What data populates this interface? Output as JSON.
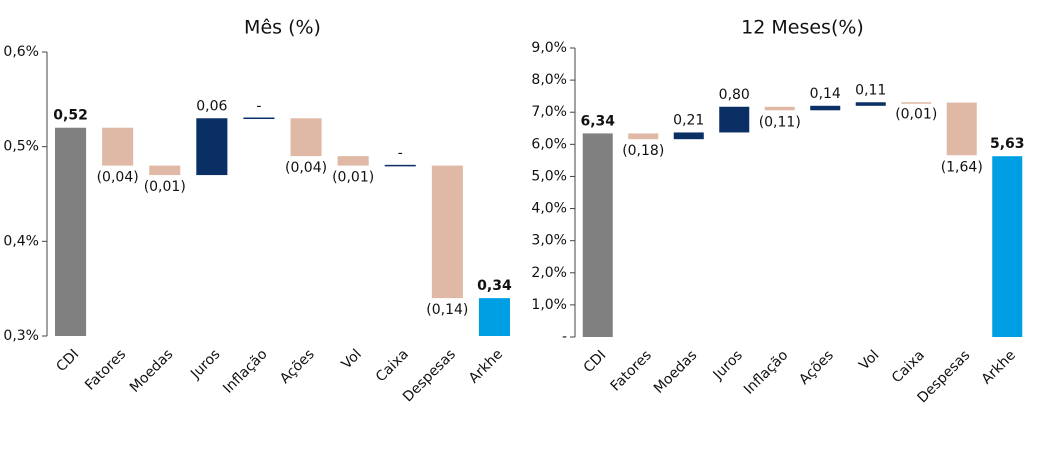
{
  "chart_data": [
    {
      "type": "waterfall",
      "title": "Mês (%)",
      "categories": [
        "CDI",
        "Fatores",
        "Moedas",
        "Juros",
        "Inflação",
        "Ações",
        "Vol",
        "Caixa",
        "Despesas",
        "Arkhe"
      ],
      "values": [
        0.52,
        -0.04,
        -0.01,
        0.06,
        0,
        -0.04,
        -0.01,
        0,
        -0.14,
        0.34
      ],
      "value_labels": [
        "0,52",
        "(0,04)",
        "(0,01)",
        "0,06",
        "-",
        "(0,04)",
        "(0,01)",
        "-",
        "(0,14)",
        "0,34"
      ],
      "colors": [
        "#808080",
        "#dfb9a5",
        "#dfb9a5",
        "#0a2f64",
        "#0a2f64",
        "#dfb9a5",
        "#dfb9a5",
        "#0a2f64",
        "#dfb9a5",
        "#009fe3"
      ],
      "ylim": [
        0.3,
        0.6
      ],
      "yticks": [
        {
          "value": 0.3,
          "label": "0,3%"
        },
        {
          "value": 0.4,
          "label": "0,4%"
        },
        {
          "value": 0.5,
          "label": "0,5%"
        },
        {
          "value": 0.6,
          "label": "0,6%"
        }
      ]
    },
    {
      "type": "waterfall",
      "title": "12 Meses(%)",
      "categories": [
        "CDI",
        "Fatores",
        "Moedas",
        "Juros",
        "Inflação",
        "Ações",
        "Vol",
        "Caixa",
        "Despesas",
        "Arkhe"
      ],
      "values": [
        6.34,
        -0.18,
        0.21,
        0.8,
        -0.11,
        0.14,
        0.11,
        -0.01,
        -1.64,
        5.63
      ],
      "value_labels": [
        "6,34",
        "(0,18)",
        "0,21",
        "0,80",
        "(0,11)",
        "0,14",
        "0,11",
        "(0,01)",
        "(1,64)",
        "5,63"
      ],
      "colors": [
        "#808080",
        "#dfb9a5",
        "#0a2f64",
        "#0a2f64",
        "#dfb9a5",
        "#0a2f64",
        "#0a2f64",
        "#dfb9a5",
        "#dfb9a5",
        "#009fe3"
      ],
      "ylim": [
        0,
        9
      ],
      "yticks": [
        {
          "value": 0,
          "label": "-"
        },
        {
          "value": 1,
          "label": "1,0%"
        },
        {
          "value": 2,
          "label": "2,0%"
        },
        {
          "value": 3,
          "label": "3,0%"
        },
        {
          "value": 4,
          "label": "4,0%"
        },
        {
          "value": 5,
          "label": "5,0%"
        },
        {
          "value": 6,
          "label": "6,0%"
        },
        {
          "value": 7,
          "label": "7,0%"
        },
        {
          "value": 8,
          "label": "8,0%"
        },
        {
          "value": 9,
          "label": "9,0%"
        }
      ]
    }
  ]
}
